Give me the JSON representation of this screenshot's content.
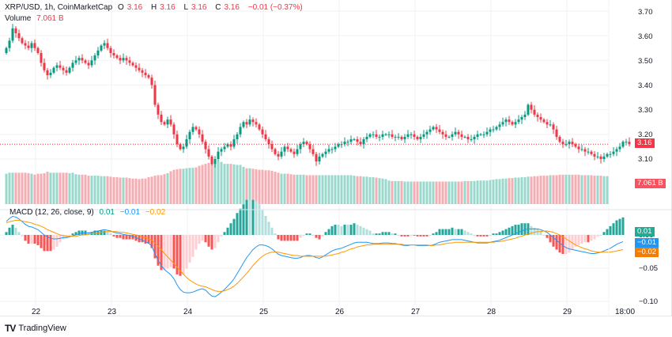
{
  "header": {
    "symbol": "XRP/USD, 1h, CoinMarketCap",
    "open_label": "O",
    "open": "3.16",
    "high_label": "H",
    "high": "3.16",
    "low_label": "L",
    "low": "3.16",
    "close_label": "C",
    "close": "3.16",
    "change": "−0.01 (−0.37%)",
    "volume_label": "Volume",
    "volume_value": "7.061 B"
  },
  "macd_legend": {
    "label": "MACD (12, 26, close, 9)",
    "hist": "0.01",
    "macd": "−0.01",
    "signal": "−0.02"
  },
  "badges": {
    "price": "3.16",
    "volume": "7.061 B",
    "macd_hist": "0.01",
    "macd_zero": "0.00",
    "macd_line": "−0.01",
    "macd_signal": "−0.02"
  },
  "branding": {
    "name": "TradingView",
    "mark": "TV"
  },
  "colors": {
    "up": "#089981",
    "down": "#f23645",
    "vol_up": "#9ad8cd",
    "vol_down": "#f6adb3",
    "macd": "#2196f3",
    "signal": "#ff9800",
    "hist_up_strong": "#26a69a",
    "hist_up_weak": "#b2dfdb",
    "hist_down_strong": "#ff5252",
    "hist_down_weak": "#ffcdd2"
  },
  "chart_data": [
    {
      "type": "candlestick",
      "title": "XRP/USD, 1h, CoinMarketCap",
      "x_ticks": [
        "22",
        "23",
        "24",
        "25",
        "26",
        "27",
        "28",
        "29",
        "18:00"
      ],
      "y_ticks": [
        "3.70",
        "3.60",
        "3.50",
        "3.40",
        "3.30",
        "3.20",
        "3.10"
      ],
      "ylim": [
        3.07,
        3.72
      ],
      "last_price": 3.16,
      "grid": true,
      "close_series": [
        3.55,
        3.58,
        3.63,
        3.61,
        3.59,
        3.57,
        3.56,
        3.55,
        3.57,
        3.55,
        3.53,
        3.49,
        3.46,
        3.44,
        3.45,
        3.47,
        3.48,
        3.47,
        3.46,
        3.45,
        3.47,
        3.49,
        3.5,
        3.51,
        3.5,
        3.49,
        3.48,
        3.5,
        3.52,
        3.54,
        3.56,
        3.57,
        3.55,
        3.53,
        3.52,
        3.51,
        3.5,
        3.51,
        3.5,
        3.49,
        3.48,
        3.47,
        3.46,
        3.45,
        3.44,
        3.43,
        3.4,
        3.32,
        3.28,
        3.25,
        3.24,
        3.26,
        3.24,
        3.2,
        3.16,
        3.14,
        3.15,
        3.18,
        3.21,
        3.23,
        3.22,
        3.2,
        3.17,
        3.14,
        3.11,
        3.08,
        3.1,
        3.13,
        3.14,
        3.15,
        3.16,
        3.15,
        3.18,
        3.2,
        3.23,
        3.25,
        3.24,
        3.26,
        3.25,
        3.24,
        3.22,
        3.2,
        3.18,
        3.16,
        3.14,
        3.12,
        3.11,
        3.13,
        3.15,
        3.14,
        3.13,
        3.12,
        3.14,
        3.16,
        3.17,
        3.16,
        3.14,
        3.12,
        3.09,
        3.11,
        3.12,
        3.13,
        3.14,
        3.14,
        3.15,
        3.16,
        3.16,
        3.17,
        3.17,
        3.18,
        3.18,
        3.17,
        3.16,
        3.18,
        3.19,
        3.2,
        3.2,
        3.19,
        3.19,
        3.2,
        3.2,
        3.2,
        3.19,
        3.19,
        3.19,
        3.18,
        3.19,
        3.2,
        3.2,
        3.19,
        3.18,
        3.19,
        3.2,
        3.21,
        3.22,
        3.23,
        3.22,
        3.21,
        3.2,
        3.19,
        3.19,
        3.2,
        3.21,
        3.2,
        3.19,
        3.19,
        3.18,
        3.18,
        3.19,
        3.2,
        3.2,
        3.2,
        3.21,
        3.22,
        3.22,
        3.23,
        3.24,
        3.25,
        3.26,
        3.25,
        3.24,
        3.25,
        3.26,
        3.27,
        3.28,
        3.32,
        3.3,
        3.28,
        3.27,
        3.26,
        3.25,
        3.24,
        3.24,
        3.22,
        3.19,
        3.17,
        3.16,
        3.16,
        3.17,
        3.16,
        3.15,
        3.14,
        3.14,
        3.13,
        3.13,
        3.12,
        3.11,
        3.11,
        3.1,
        3.11,
        3.12,
        3.12,
        3.13,
        3.14,
        3.15,
        3.17,
        3.17,
        3.16
      ]
    },
    {
      "type": "bar",
      "title": "Volume",
      "last_value": "7.061 B",
      "relative_levels": [
        0.62,
        0.64,
        0.64,
        0.64,
        0.64,
        0.64,
        0.64,
        0.63,
        0.62,
        0.6,
        0.62,
        0.62,
        0.63,
        0.66,
        0.64,
        0.64,
        0.64,
        0.64,
        0.64,
        0.64,
        0.63,
        0.64,
        0.61,
        0.6,
        0.6,
        0.6,
        0.58,
        0.58,
        0.58,
        0.58,
        0.57,
        0.57,
        0.57,
        0.56,
        0.55,
        0.55,
        0.54,
        0.54,
        0.54,
        0.53,
        0.52,
        0.52,
        0.51,
        0.52,
        0.52,
        0.55,
        0.56,
        0.58,
        0.59,
        0.59,
        0.61,
        0.63,
        0.67,
        0.7,
        0.71,
        0.72,
        0.72,
        0.73,
        0.74,
        0.74,
        0.75,
        0.78,
        0.8,
        0.82,
        0.84,
        0.86,
        0.87,
        0.88,
        0.86,
        0.82,
        0.82,
        0.82,
        0.81,
        0.8,
        0.8,
        0.76,
        0.73,
        0.73,
        0.72,
        0.71,
        0.7,
        0.7,
        0.69,
        0.69,
        0.68,
        0.66,
        0.64,
        0.62,
        0.62,
        0.62,
        0.61,
        0.6,
        0.6,
        0.6,
        0.6,
        0.59,
        0.59,
        0.59,
        0.59,
        0.59,
        0.59,
        0.59,
        0.59,
        0.59,
        0.59,
        0.59,
        0.59,
        0.59,
        0.59,
        0.59,
        0.58,
        0.57,
        0.57,
        0.56,
        0.56,
        0.55,
        0.55,
        0.54,
        0.53,
        0.52,
        0.51,
        0.48,
        0.47,
        0.47,
        0.47,
        0.47,
        0.46,
        0.46,
        0.46,
        0.46,
        0.46,
        0.46,
        0.46,
        0.46,
        0.46,
        0.46,
        0.46,
        0.46,
        0.46,
        0.46,
        0.46,
        0.46,
        0.46,
        0.46,
        0.46,
        0.47,
        0.47,
        0.47,
        0.47,
        0.48,
        0.48,
        0.48,
        0.48,
        0.49,
        0.5,
        0.51,
        0.51,
        0.52,
        0.52,
        0.53,
        0.53,
        0.54,
        0.54,
        0.55,
        0.55,
        0.56,
        0.56,
        0.57,
        0.57,
        0.58,
        0.58,
        0.58,
        0.59,
        0.59,
        0.59,
        0.6,
        0.6,
        0.6,
        0.6,
        0.6,
        0.6,
        0.6,
        0.59,
        0.59,
        0.59,
        0.59,
        0.58,
        0.58,
        0.58,
        0.57,
        0.57
      ]
    },
    {
      "type": "line",
      "title": "MACD (12, 26, close, 9)",
      "y_ticks": [
        "0.00",
        "−0.05",
        "−0.10"
      ],
      "ylim": [
        -0.11,
        0.03
      ],
      "series": [
        {
          "name": "MACD",
          "values": [
            0.02,
            0.025,
            0.028,
            0.027,
            0.024,
            0.02,
            0.016,
            0.013,
            0.012,
            0.01,
            0.008,
            0.004,
            0.0,
            -0.003,
            -0.005,
            -0.006,
            -0.006,
            -0.005,
            -0.004,
            -0.004,
            -0.003,
            -0.001,
            0.0,
            0.002,
            0.003,
            0.003,
            0.003,
            0.004,
            0.005,
            0.006,
            0.007,
            0.008,
            0.007,
            0.006,
            0.004,
            0.003,
            0.002,
            0.001,
            0.0,
            -0.001,
            -0.002,
            -0.004,
            -0.006,
            -0.008,
            -0.01,
            -0.012,
            -0.017,
            -0.028,
            -0.038,
            -0.046,
            -0.052,
            -0.056,
            -0.06,
            -0.066,
            -0.075,
            -0.082,
            -0.086,
            -0.087,
            -0.087,
            -0.086,
            -0.084,
            -0.082,
            -0.081,
            -0.083,
            -0.088,
            -0.092,
            -0.093,
            -0.09,
            -0.086,
            -0.082,
            -0.077,
            -0.072,
            -0.066,
            -0.058,
            -0.05,
            -0.042,
            -0.034,
            -0.028,
            -0.022,
            -0.018,
            -0.015,
            -0.015,
            -0.016,
            -0.018,
            -0.021,
            -0.025,
            -0.029,
            -0.031,
            -0.032,
            -0.033,
            -0.034,
            -0.035,
            -0.035,
            -0.034,
            -0.032,
            -0.031,
            -0.031,
            -0.032,
            -0.034,
            -0.035,
            -0.033,
            -0.03,
            -0.027,
            -0.024,
            -0.022,
            -0.021,
            -0.02,
            -0.018,
            -0.016,
            -0.014,
            -0.012,
            -0.011,
            -0.011,
            -0.011,
            -0.011,
            -0.012,
            -0.013,
            -0.013,
            -0.013,
            -0.012,
            -0.012,
            -0.012,
            -0.013,
            -0.013,
            -0.014,
            -0.015,
            -0.016,
            -0.016,
            -0.015,
            -0.015,
            -0.016,
            -0.016,
            -0.016,
            -0.016,
            -0.016,
            -0.015,
            -0.013,
            -0.011,
            -0.01,
            -0.009,
            -0.008,
            -0.007,
            -0.007,
            -0.007,
            -0.007,
            -0.008,
            -0.009,
            -0.01,
            -0.011,
            -0.012,
            -0.012,
            -0.012,
            -0.012,
            -0.011,
            -0.01,
            -0.009,
            -0.008,
            -0.006,
            -0.004,
            -0.002,
            0.0,
            0.002,
            0.004,
            0.006,
            0.008,
            0.009,
            0.009,
            0.009,
            0.009,
            0.008,
            0.006,
            0.004,
            0.0,
            -0.004,
            -0.008,
            -0.012,
            -0.016,
            -0.019,
            -0.021,
            -0.022,
            -0.023,
            -0.024,
            -0.025,
            -0.026,
            -0.027,
            -0.028,
            -0.028,
            -0.027,
            -0.026,
            -0.024,
            -0.022,
            -0.02,
            -0.017,
            -0.014,
            -0.012,
            -0.01
          ]
        },
        {
          "name": "Signal",
          "values": [
            0.018,
            0.02,
            0.021,
            0.022,
            0.022,
            0.021,
            0.02,
            0.019,
            0.018,
            0.016,
            0.015,
            0.013,
            0.011,
            0.008,
            0.006,
            0.004,
            0.002,
            0.0,
            -0.001,
            -0.002,
            -0.002,
            -0.002,
            -0.002,
            -0.001,
            0.0,
            0.0,
            0.001,
            0.002,
            0.002,
            0.003,
            0.004,
            0.005,
            0.005,
            0.005,
            0.005,
            0.005,
            0.004,
            0.004,
            0.003,
            0.002,
            0.001,
            0.0,
            -0.001,
            -0.003,
            -0.004,
            -0.006,
            -0.008,
            -0.012,
            -0.017,
            -0.022,
            -0.028,
            -0.033,
            -0.038,
            -0.043,
            -0.048,
            -0.054,
            -0.059,
            -0.064,
            -0.068,
            -0.071,
            -0.074,
            -0.076,
            -0.077,
            -0.078,
            -0.08,
            -0.082,
            -0.084,
            -0.085,
            -0.085,
            -0.084,
            -0.082,
            -0.08,
            -0.077,
            -0.073,
            -0.068,
            -0.063,
            -0.058,
            -0.052,
            -0.046,
            -0.041,
            -0.036,
            -0.032,
            -0.029,
            -0.027,
            -0.026,
            -0.026,
            -0.026,
            -0.027,
            -0.028,
            -0.029,
            -0.03,
            -0.031,
            -0.031,
            -0.032,
            -0.032,
            -0.032,
            -0.032,
            -0.032,
            -0.032,
            -0.032,
            -0.032,
            -0.032,
            -0.031,
            -0.03,
            -0.029,
            -0.028,
            -0.026,
            -0.025,
            -0.023,
            -0.021,
            -0.02,
            -0.018,
            -0.017,
            -0.016,
            -0.015,
            -0.015,
            -0.014,
            -0.014,
            -0.014,
            -0.014,
            -0.014,
            -0.014,
            -0.014,
            -0.014,
            -0.014,
            -0.014,
            -0.015,
            -0.015,
            -0.015,
            -0.015,
            -0.015,
            -0.015,
            -0.015,
            -0.015,
            -0.016,
            -0.016,
            -0.015,
            -0.015,
            -0.014,
            -0.013,
            -0.012,
            -0.012,
            -0.011,
            -0.011,
            -0.011,
            -0.011,
            -0.011,
            -0.011,
            -0.011,
            -0.011,
            -0.011,
            -0.011,
            -0.011,
            -0.011,
            -0.011,
            -0.01,
            -0.01,
            -0.009,
            -0.008,
            -0.007,
            -0.006,
            -0.005,
            -0.003,
            -0.002,
            0.0,
            0.001,
            0.003,
            0.004,
            0.005,
            0.005,
            0.006,
            0.006,
            0.005,
            0.004,
            0.002,
            0.0,
            -0.003,
            -0.006,
            -0.009,
            -0.012,
            -0.015,
            -0.017,
            -0.019,
            -0.021,
            -0.022,
            -0.024,
            -0.025,
            -0.026,
            -0.026,
            -0.026,
            -0.026,
            -0.026,
            -0.025,
            -0.024,
            -0.023,
            -0.022
          ]
        }
      ]
    }
  ]
}
